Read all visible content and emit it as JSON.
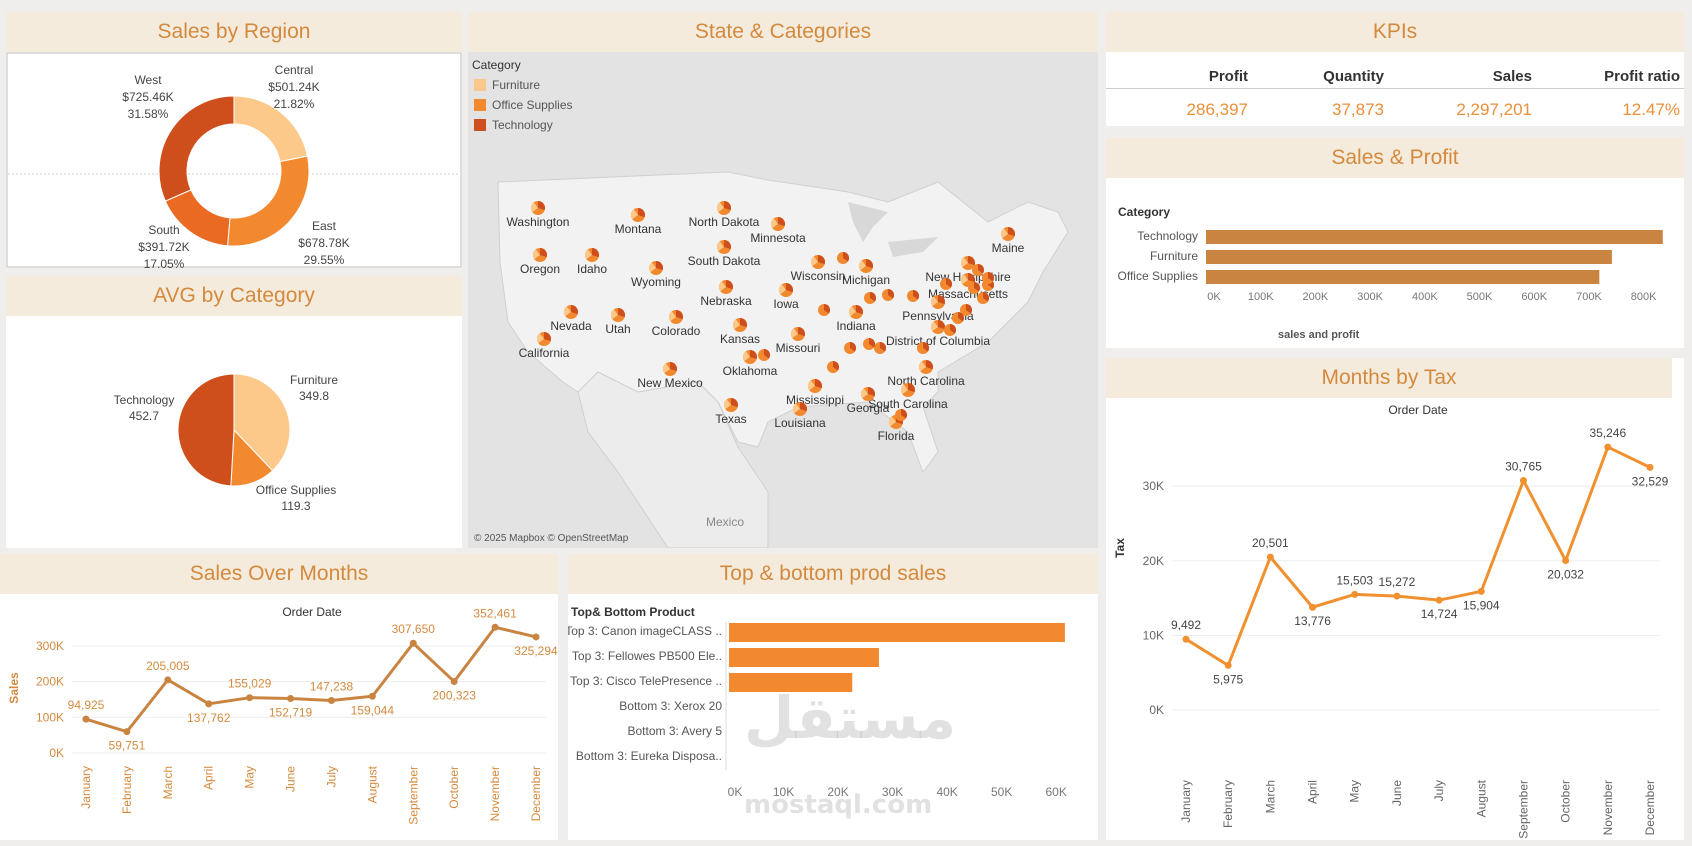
{
  "colors": {
    "furniture": "#fdc98a",
    "office": "#f2892e",
    "technology": "#cf4f1c",
    "bar": "#c98442",
    "line": "#f0902e",
    "title_bg": "#f5ebdc",
    "title_fg": "#d48a3e",
    "axis_orange": "#d48a3e"
  },
  "sales_by_region": {
    "title": "Sales by Region",
    "slices": [
      {
        "name": "Central",
        "value": "$501.24K",
        "pct": "21.82%"
      },
      {
        "name": "East",
        "value": "$678.78K",
        "pct": "29.55%"
      },
      {
        "name": "South",
        "value": "$391.72K",
        "pct": "17.05%"
      },
      {
        "name": "West",
        "value": "$725.46K",
        "pct": "31.58%"
      }
    ]
  },
  "avg_by_category": {
    "title": "AVG by Category",
    "slices": [
      {
        "name": "Furniture",
        "value": "349.8"
      },
      {
        "name": "Office Supplies",
        "value": "119.3"
      },
      {
        "name": "Technology",
        "value": "452.7"
      }
    ]
  },
  "map": {
    "title": "State & Categories",
    "legend_title": "Category",
    "legend": [
      "Furniture",
      "Office Supplies",
      "Technology"
    ],
    "states": [
      "Washington",
      "Montana",
      "North Dakota",
      "Minnesota",
      "Maine",
      "Oregon",
      "Idaho",
      "Wyoming",
      "South Dakota",
      "Wisconsin",
      "New Hampshire",
      "Massachusetts",
      "Michigan",
      "Nebraska",
      "Iowa",
      "Pennsylvania",
      "Nevada",
      "Utah",
      "Colorado",
      "Kansas",
      "Indiana",
      "District of Columbia",
      "California",
      "Missouri",
      "North Carolina",
      "Oklahoma",
      "New Mexico",
      "South Carolina",
      "Mississippi",
      "Georgia",
      "Texas",
      "Louisiana",
      "Florida"
    ],
    "country_label": "Mexico",
    "attribution": "© 2025 Mapbox © OpenStreetMap"
  },
  "kpis": {
    "title": "KPIs",
    "headers": [
      "Profit",
      "Quantity",
      "Sales",
      "Profit ratio"
    ],
    "values": [
      "286,397",
      "37,873",
      "2,297,201",
      "12.47%"
    ]
  },
  "sales_profit": {
    "title": "Sales & Profit",
    "axis_title": "Category",
    "footer_label": "sales and profit"
  },
  "months_by_tax": {
    "title": "Months by Tax",
    "header": "Order Date",
    "ylabel": "Tax"
  },
  "sales_over_months": {
    "title": "Sales Over Months",
    "header": "Order Date",
    "ylabel": "Sales"
  },
  "top_bottom": {
    "title": "Top & bottom prod sales",
    "axis_title": "Top& Bottom Product"
  },
  "watermark": {
    "arabic": "مستقل",
    "latin": "mostaql.com"
  },
  "chart_data": [
    {
      "type": "pie",
      "title": "Sales by Region",
      "categories": [
        "Central",
        "East",
        "South",
        "West"
      ],
      "values": [
        501.24,
        678.78,
        391.72,
        725.46
      ],
      "unit": "K$",
      "percent": [
        21.82,
        29.55,
        17.05,
        31.58
      ]
    },
    {
      "type": "pie",
      "title": "AVG by Category",
      "categories": [
        "Furniture",
        "Office Supplies",
        "Technology"
      ],
      "values": [
        349.8,
        119.3,
        452.7
      ]
    },
    {
      "type": "bar",
      "title": "Sales & Profit",
      "orientation": "horizontal",
      "categories": [
        "Technology",
        "Furniture",
        "Office Supplies"
      ],
      "values": [
        835000,
        742000,
        719000
      ],
      "xlabel": "sales and profit",
      "ylabel": "Category",
      "xlim": [
        0,
        850000
      ],
      "ticks": [
        "0K",
        "100K",
        "200K",
        "300K",
        "400K",
        "500K",
        "600K",
        "700K",
        "800K"
      ],
      "tick_values": [
        0,
        100000,
        200000,
        300000,
        400000,
        500000,
        600000,
        700000,
        800000
      ]
    },
    {
      "type": "line",
      "title": "Months by Tax",
      "xlabel": "Order Date",
      "ylabel": "Tax",
      "categories": [
        "January",
        "February",
        "March",
        "April",
        "May",
        "June",
        "July",
        "August",
        "September",
        "October",
        "November",
        "December"
      ],
      "values": [
        9492,
        5975,
        20501,
        13776,
        15503,
        15272,
        14724,
        15904,
        30765,
        20032,
        35246,
        32529
      ],
      "labels": [
        "9,492",
        "5,975",
        "20,501",
        "13,776",
        "15,503",
        "15,272",
        "14,724",
        "15,904",
        "30,765",
        "20,032",
        "35,246",
        "32,529"
      ],
      "ylim": [
        0,
        37000
      ],
      "ticks": [
        "0K",
        "10K",
        "20K",
        "30K"
      ],
      "tick_values": [
        0,
        10000,
        20000,
        30000
      ]
    },
    {
      "type": "line",
      "title": "Sales Over Months",
      "xlabel": "Order Date",
      "ylabel": "Sales",
      "categories": [
        "January",
        "February",
        "March",
        "April",
        "May",
        "June",
        "July",
        "August",
        "September",
        "October",
        "November",
        "December"
      ],
      "values": [
        94925,
        59751,
        205005,
        137762,
        155029,
        152719,
        147238,
        159044,
        307650,
        200323,
        352461,
        325294
      ],
      "labels": [
        "94,925",
        "59,751",
        "205,005",
        "137,762",
        "155,029",
        "152,719",
        "147,238",
        "159,044",
        "307,650",
        "200,323",
        "352,461",
        "325,294"
      ],
      "ylim": [
        0,
        370000
      ],
      "ticks": [
        "0K",
        "100K",
        "200K",
        "300K"
      ],
      "tick_values": [
        0,
        100000,
        200000,
        300000
      ]
    },
    {
      "type": "bar",
      "title": "Top & bottom prod sales",
      "orientation": "horizontal",
      "categories": [
        "Top 3: Canon imageCLASS ..",
        "Top 3: Fellowes PB500 Ele..",
        "Top 3: Cisco TelePresence ..",
        "Bottom 3: Xerox 20",
        "Bottom 3: Avery 5",
        "Bottom 3: Eureka Disposa.."
      ],
      "values": [
        61600,
        27500,
        22600,
        7,
        5,
        2
      ],
      "ylabel": "Top& Bottom Product",
      "xlim": [
        0,
        64000
      ],
      "ticks": [
        "0K",
        "10K",
        "20K",
        "30K",
        "40K",
        "50K",
        "60K"
      ],
      "tick_values": [
        0,
        10000,
        20000,
        30000,
        40000,
        50000,
        60000
      ]
    }
  ]
}
